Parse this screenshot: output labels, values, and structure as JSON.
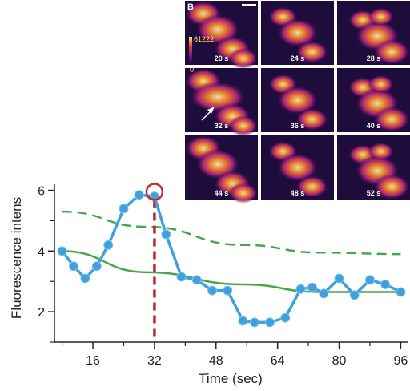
{
  "chart_data": {
    "type": "line",
    "xlabel": "Time (sec)",
    "ylabel": "Fluorescence intens",
    "xlim": [
      6,
      98
    ],
    "ylim": [
      1,
      6.2
    ],
    "xticks": [
      16,
      32,
      48,
      64,
      80,
      96
    ],
    "yticks": [
      2,
      4,
      6
    ],
    "x": [
      8,
      11,
      14,
      17,
      20,
      24,
      28,
      32,
      35,
      39,
      43,
      47,
      51,
      55,
      58,
      62,
      66,
      70,
      73,
      76,
      80,
      84,
      88,
      92,
      96
    ],
    "series": [
      {
        "values": [
          4.0,
          3.5,
          3.1,
          3.5,
          4.2,
          5.4,
          5.85,
          5.8,
          4.55,
          3.15,
          3.05,
          2.7,
          2.7,
          1.7,
          1.65,
          1.65,
          1.8,
          2.75,
          2.8,
          2.6,
          3.1,
          2.55,
          3.05,
          2.9,
          2.65
        ],
        "color": "#3fa0dc"
      }
    ],
    "fits": [
      {
        "style": "solid",
        "color": "#47a64b",
        "x": [
          8,
          30,
          55,
          75,
          96
        ],
        "values": [
          4.0,
          3.3,
          2.9,
          2.65,
          2.65
        ]
      },
      {
        "style": "dashed",
        "color": "#47a64b",
        "x": [
          8,
          30,
          55,
          75,
          96
        ],
        "values": [
          5.3,
          4.8,
          4.2,
          3.95,
          3.9
        ]
      }
    ],
    "highlight": {
      "x": 32,
      "y": 5.95,
      "color": "#c0282d"
    },
    "inset": {
      "panel_label": "B",
      "colorbar_max": "61222",
      "colorbar_min": "0",
      "frames": [
        "20 s",
        "24 s",
        "28 s",
        "32 s",
        "36 s",
        "40 s",
        "44 s",
        "48 s",
        "52 s"
      ]
    }
  }
}
